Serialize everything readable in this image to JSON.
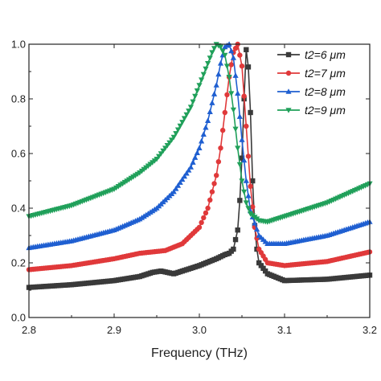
{
  "chart_data": {
    "type": "line",
    "title": "",
    "xlabel": "Frequency (THz)",
    "ylabel": "",
    "xlim": [
      2.8,
      3.2
    ],
    "ylim": [
      0.0,
      1.0
    ],
    "xticks": [
      "2.8",
      "2.9",
      "3.0",
      "3.1",
      "3.2"
    ],
    "yticks": [
      "0.0",
      "0.2",
      "0.4",
      "0.6",
      "0.8",
      "1.0"
    ],
    "legend_position": "top-right",
    "series": [
      {
        "name": "t2=6 μm",
        "color": "#3a3a3a",
        "marker": "square",
        "x": [
          2.8,
          2.85,
          2.9,
          2.93,
          2.945,
          2.955,
          2.97,
          3.0,
          3.02,
          3.03,
          3.035,
          3.04,
          3.045,
          3.048,
          3.051,
          3.053,
          3.055,
          3.057,
          3.06,
          3.063,
          3.066,
          3.07,
          3.08,
          3.1,
          3.15,
          3.2
        ],
        "y": [
          0.11,
          0.12,
          0.135,
          0.15,
          0.165,
          0.17,
          0.16,
          0.19,
          0.215,
          0.23,
          0.235,
          0.25,
          0.32,
          0.45,
          0.65,
          0.85,
          0.98,
          0.95,
          0.75,
          0.45,
          0.28,
          0.2,
          0.16,
          0.135,
          0.14,
          0.155
        ]
      },
      {
        "name": "t2=7 μm",
        "color": "#e0393a",
        "marker": "circle",
        "x": [
          2.8,
          2.85,
          2.9,
          2.93,
          2.945,
          2.96,
          2.98,
          3.0,
          3.01,
          3.02,
          3.025,
          3.03,
          3.035,
          3.04,
          3.045,
          3.05,
          3.055,
          3.06,
          3.065,
          3.07,
          3.08,
          3.1,
          3.15,
          3.2
        ],
        "y": [
          0.175,
          0.19,
          0.215,
          0.235,
          0.24,
          0.245,
          0.27,
          0.33,
          0.4,
          0.52,
          0.62,
          0.75,
          0.88,
          0.97,
          1.0,
          0.92,
          0.7,
          0.48,
          0.33,
          0.25,
          0.2,
          0.19,
          0.205,
          0.24
        ]
      },
      {
        "name": "t2=8 μm",
        "color": "#1f5fd1",
        "marker": "triangle-up",
        "x": [
          2.8,
          2.85,
          2.9,
          2.93,
          2.95,
          2.97,
          2.99,
          3.0,
          3.01,
          3.02,
          3.025,
          3.03,
          3.035,
          3.04,
          3.045,
          3.05,
          3.055,
          3.06,
          3.07,
          3.08,
          3.1,
          3.15,
          3.2
        ],
        "y": [
          0.255,
          0.28,
          0.32,
          0.36,
          0.4,
          0.46,
          0.55,
          0.62,
          0.72,
          0.85,
          0.93,
          0.99,
          1.0,
          0.95,
          0.82,
          0.65,
          0.5,
          0.39,
          0.3,
          0.27,
          0.27,
          0.3,
          0.35
        ]
      },
      {
        "name": "t2=9 μm",
        "color": "#20a05a",
        "marker": "triangle-down",
        "x": [
          2.8,
          2.85,
          2.9,
          2.93,
          2.95,
          2.97,
          2.99,
          3.0,
          3.01,
          3.015,
          3.02,
          3.025,
          3.03,
          3.035,
          3.04,
          3.045,
          3.05,
          3.055,
          3.06,
          3.07,
          3.08,
          3.1,
          3.15,
          3.2
        ],
        "y": [
          0.37,
          0.41,
          0.47,
          0.53,
          0.58,
          0.66,
          0.77,
          0.85,
          0.93,
          0.97,
          1.0,
          0.99,
          0.96,
          0.88,
          0.76,
          0.62,
          0.5,
          0.42,
          0.38,
          0.355,
          0.35,
          0.37,
          0.42,
          0.49
        ]
      }
    ]
  }
}
